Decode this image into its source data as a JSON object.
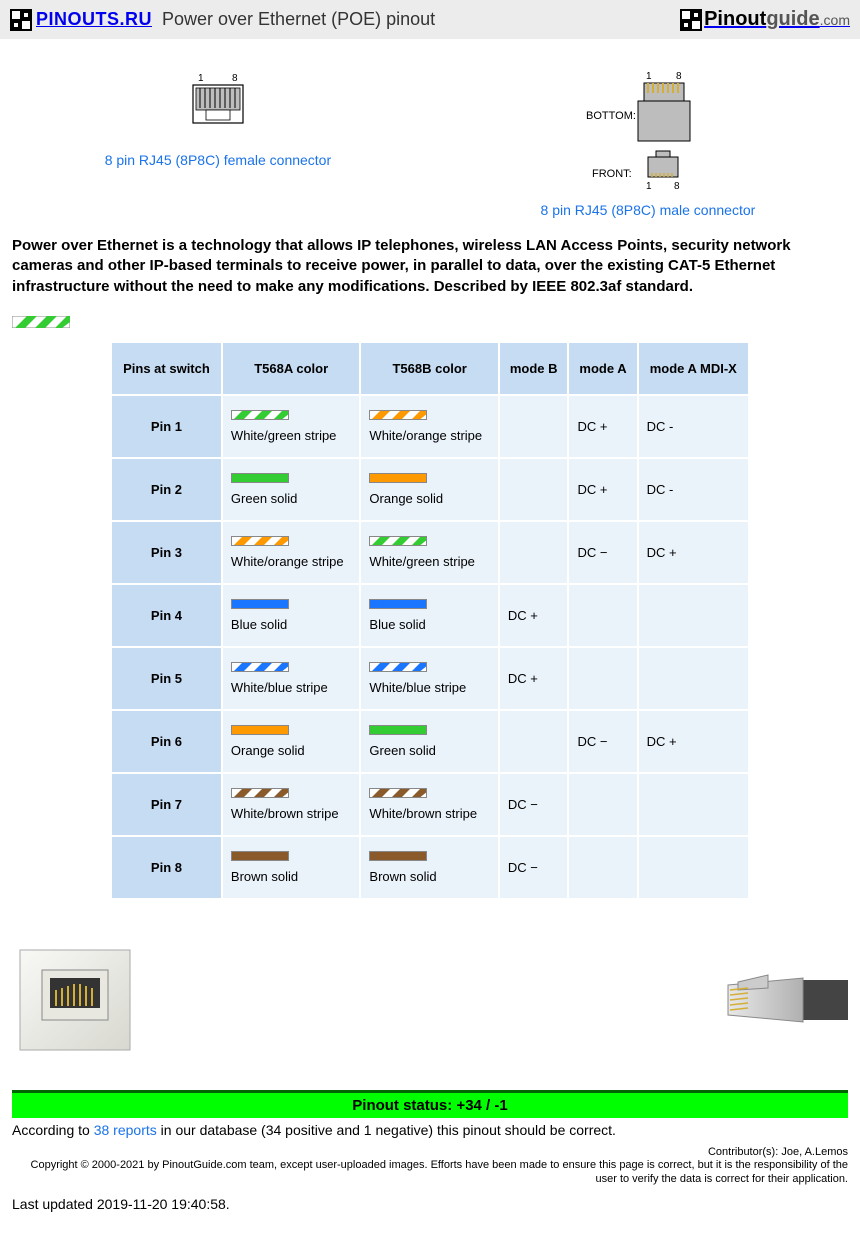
{
  "header": {
    "logo_ru_text": "PINOUTS.RU",
    "title": "Power over Ethernet (POE) pinout",
    "logo_guide_p1": "Pinout",
    "logo_guide_p2": "guide",
    "logo_guide_p3": ".com"
  },
  "connectors": {
    "female_link": "8 pin RJ45 (8P8C) female connector",
    "male_link": "8 pin RJ45 (8P8C) male connector",
    "male_bottom_label": "BOTTOM:",
    "male_front_label": "FRONT:",
    "pin_left": "1",
    "pin_right": "8"
  },
  "intro_text": "Power over Ethernet is a technology that allows IP telephones, wireless LAN Access Points, security network cameras and other IP-based terminals to receive power, in parallel to data, over the existing CAT-5 Ethernet infrastructure without the need to make any modifications. Described by IEEE 802.3af standard.",
  "table": {
    "headers": [
      "Pins at switch",
      "T568A color",
      "T568B color",
      "mode B",
      "mode A",
      "mode A MDI-X"
    ],
    "rows": [
      {
        "pin": "Pin 1",
        "a_color": "White/green stripe",
        "a_swatch": {
          "type": "stripe",
          "stripe": "#33cc33"
        },
        "b_color": "White/orange stripe",
        "b_swatch": {
          "type": "stripe",
          "stripe": "#ff9900"
        },
        "mode_b": "",
        "mode_a": "DC +",
        "mode_a_mdix": "DC -"
      },
      {
        "pin": "Pin 2",
        "a_color": "Green solid",
        "a_swatch": {
          "type": "solid",
          "fill": "#33cc33"
        },
        "b_color": "Orange solid",
        "b_swatch": {
          "type": "solid",
          "fill": "#ff9900"
        },
        "mode_b": "",
        "mode_a": "DC +",
        "mode_a_mdix": "DC -"
      },
      {
        "pin": "Pin 3",
        "a_color": "White/orange stripe",
        "a_swatch": {
          "type": "stripe",
          "stripe": "#ff9900"
        },
        "b_color": "White/green stripe",
        "b_swatch": {
          "type": "stripe",
          "stripe": "#33cc33"
        },
        "mode_b": "",
        "mode_a": "DC −",
        "mode_a_mdix": "DC +"
      },
      {
        "pin": "Pin 4",
        "a_color": "Blue solid",
        "a_swatch": {
          "type": "solid",
          "fill": "#1a75ff"
        },
        "b_color": "Blue solid",
        "b_swatch": {
          "type": "solid",
          "fill": "#1a75ff"
        },
        "mode_b": "DC +",
        "mode_a": "",
        "mode_a_mdix": ""
      },
      {
        "pin": "Pin 5",
        "a_color": "White/blue stripe",
        "a_swatch": {
          "type": "stripe",
          "stripe": "#1a75ff"
        },
        "b_color": "White/blue stripe",
        "b_swatch": {
          "type": "stripe",
          "stripe": "#1a75ff"
        },
        "mode_b": "DC +",
        "mode_a": "",
        "mode_a_mdix": ""
      },
      {
        "pin": "Pin 6",
        "a_color": "Orange solid",
        "a_swatch": {
          "type": "solid",
          "fill": "#ff9900"
        },
        "b_color": "Green solid",
        "b_swatch": {
          "type": "solid",
          "fill": "#33cc33"
        },
        "mode_b": "",
        "mode_a": "DC −",
        "mode_a_mdix": "DC +"
      },
      {
        "pin": "Pin 7",
        "a_color": "White/brown stripe",
        "a_swatch": {
          "type": "stripe",
          "stripe": "#8b5a2b"
        },
        "b_color": "White/brown stripe",
        "b_swatch": {
          "type": "stripe",
          "stripe": "#8b5a2b"
        },
        "mode_b": "DC −",
        "mode_a": "",
        "mode_a_mdix": ""
      },
      {
        "pin": "Pin 8",
        "a_color": "Brown solid",
        "a_swatch": {
          "type": "solid",
          "fill": "#8b5a2b"
        },
        "b_color": "Brown solid",
        "b_swatch": {
          "type": "solid",
          "fill": "#8b5a2b"
        },
        "mode_b": "DC −",
        "mode_a": "",
        "mode_a_mdix": ""
      }
    ]
  },
  "status": {
    "bar_text": "Pinout status: +34 / -1",
    "text_before": "According to ",
    "reports_link": "38 reports",
    "text_after": " in our database (34 positive and 1 negative) this pinout should be correct."
  },
  "contributors": "Contributor(s): Joe, A.Lemos",
  "copyright": "Copyright © 2000-2021 by PinoutGuide.com team, except user-uploaded images. Efforts have been made to ensure this page is correct, but it is the responsibility of the user to verify the data is correct for their application.",
  "last_updated": "Last updated 2019-11-20 19:40:58.",
  "colors": {
    "header_bg": "#ececec",
    "th_bg": "#c6dcf2",
    "td_bg": "#eaf2fa",
    "link": "#1a73e8",
    "status_bg": "#00ff00",
    "status_border": "#006600"
  }
}
